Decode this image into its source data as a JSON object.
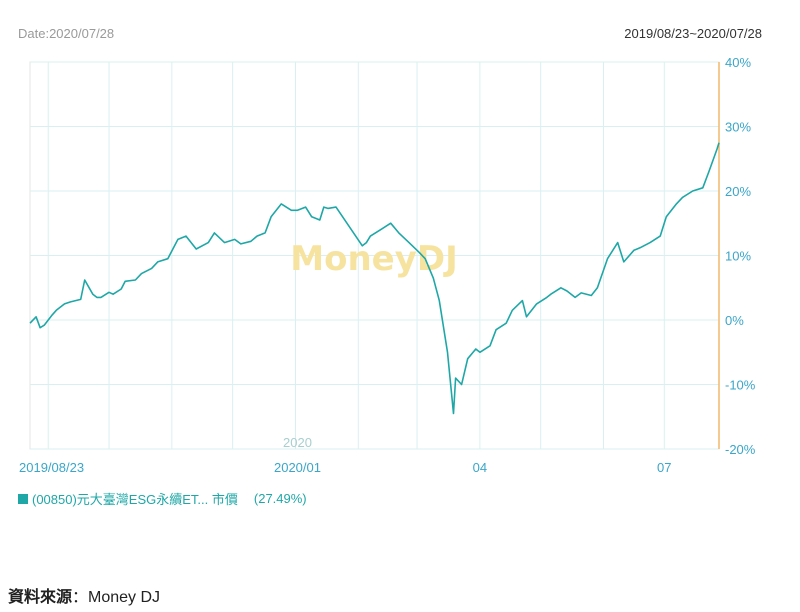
{
  "header": {
    "date_label": "Date:2020/07/28",
    "range_label": "2019/08/23~2020/07/28"
  },
  "watermark": "MoneyDJ",
  "legend": {
    "series_label": "(00850)元大臺灣ESG永續ET... 市價",
    "percent_label": "(27.49%)"
  },
  "source": {
    "label": "資料來源",
    "sep": "：",
    "value": "Money DJ"
  },
  "colors": {
    "line": "#1fa7a7",
    "grid": "#d9f0f0",
    "right_axis": "#f2b96b",
    "tick_text": "#3aa6c9",
    "watermark": "#f7e3a0"
  },
  "chart_data": {
    "type": "line",
    "title": "",
    "xlabel": "",
    "ylabel": "",
    "ylim": [
      -20,
      40
    ],
    "yticks": [
      40,
      30,
      20,
      10,
      0,
      -10,
      -20
    ],
    "ytick_suffix": "%",
    "x_range": [
      "2019-08-23",
      "2020-07-28"
    ],
    "xtick_labels": [
      {
        "date": "2019-08-23",
        "label": "2019/08/23"
      },
      {
        "date": "2020-01-02",
        "label": "2020/01"
      },
      {
        "date": "2020-04-01",
        "label": "04"
      },
      {
        "date": "2020-07-01",
        "label": "07"
      }
    ],
    "year_marker": {
      "date": "2020-01-02",
      "label": "2020"
    },
    "grid": true,
    "legend_position": "bottom-left",
    "series": [
      {
        "name": "(00850)元大臺灣ESG永續ET... 市價",
        "x": [
          "2019-08-23",
          "2019-08-26",
          "2019-08-28",
          "2019-08-30",
          "2019-09-03",
          "2019-09-05",
          "2019-09-09",
          "2019-09-12",
          "2019-09-17",
          "2019-09-19",
          "2019-09-23",
          "2019-09-25",
          "2019-09-27",
          "2019-10-01",
          "2019-10-03",
          "2019-10-07",
          "2019-10-09",
          "2019-10-14",
          "2019-10-17",
          "2019-10-22",
          "2019-10-25",
          "2019-10-30",
          "2019-11-04",
          "2019-11-08",
          "2019-11-13",
          "2019-11-19",
          "2019-11-22",
          "2019-11-27",
          "2019-12-02",
          "2019-12-05",
          "2019-12-10",
          "2019-12-13",
          "2019-12-17",
          "2019-12-20",
          "2019-12-25",
          "2019-12-30",
          "2020-01-02",
          "2020-01-06",
          "2020-01-09",
          "2020-01-13",
          "2020-01-15",
          "2020-01-17",
          "2020-01-21",
          "2020-02-03",
          "2020-02-05",
          "2020-02-07",
          "2020-02-12",
          "2020-02-17",
          "2020-02-21",
          "2020-02-26",
          "2020-03-02",
          "2020-03-05",
          "2020-03-09",
          "2020-03-12",
          "2020-03-16",
          "2020-03-19",
          "2020-03-20",
          "2020-03-23",
          "2020-03-26",
          "2020-03-30",
          "2020-04-01",
          "2020-04-06",
          "2020-04-09",
          "2020-04-14",
          "2020-04-17",
          "2020-04-22",
          "2020-04-24",
          "2020-04-29",
          "2020-05-04",
          "2020-05-06",
          "2020-05-11",
          "2020-05-14",
          "2020-05-18",
          "2020-05-21",
          "2020-05-26",
          "2020-05-29",
          "2020-06-03",
          "2020-06-08",
          "2020-06-11",
          "2020-06-16",
          "2020-06-19",
          "2020-06-24",
          "2020-06-29",
          "2020-07-02",
          "2020-07-07",
          "2020-07-10",
          "2020-07-15",
          "2020-07-20",
          "2020-07-23",
          "2020-07-27",
          "2020-07-28"
        ],
        "values": [
          -0.5,
          0.5,
          -1.2,
          -0.8,
          0.8,
          1.5,
          2.5,
          2.8,
          3.2,
          6.2,
          4.0,
          3.5,
          3.5,
          4.3,
          4.0,
          4.8,
          6.0,
          6.2,
          7.2,
          8.0,
          9.0,
          9.5,
          12.5,
          13.0,
          11.0,
          12.0,
          13.5,
          12.0,
          12.5,
          11.8,
          12.2,
          13.0,
          13.5,
          16.0,
          18.0,
          17.0,
          17.0,
          17.5,
          16.0,
          15.5,
          17.5,
          17.3,
          17.5,
          11.5,
          12.0,
          13.0,
          14.0,
          15.0,
          13.5,
          12.0,
          10.5,
          9.5,
          6.5,
          3.0,
          -5.0,
          -14.5,
          -9.0,
          -10.0,
          -6.0,
          -4.5,
          -5.0,
          -4.0,
          -1.5,
          -0.5,
          1.5,
          3.0,
          0.5,
          2.5,
          3.5,
          4.0,
          5.0,
          4.5,
          3.5,
          4.2,
          3.8,
          5.0,
          9.5,
          12.0,
          9.0,
          10.8,
          11.2,
          12.0,
          13.0,
          16.0,
          18.0,
          19.0,
          20.0,
          20.5,
          23.0,
          26.5,
          27.49
        ]
      }
    ]
  }
}
